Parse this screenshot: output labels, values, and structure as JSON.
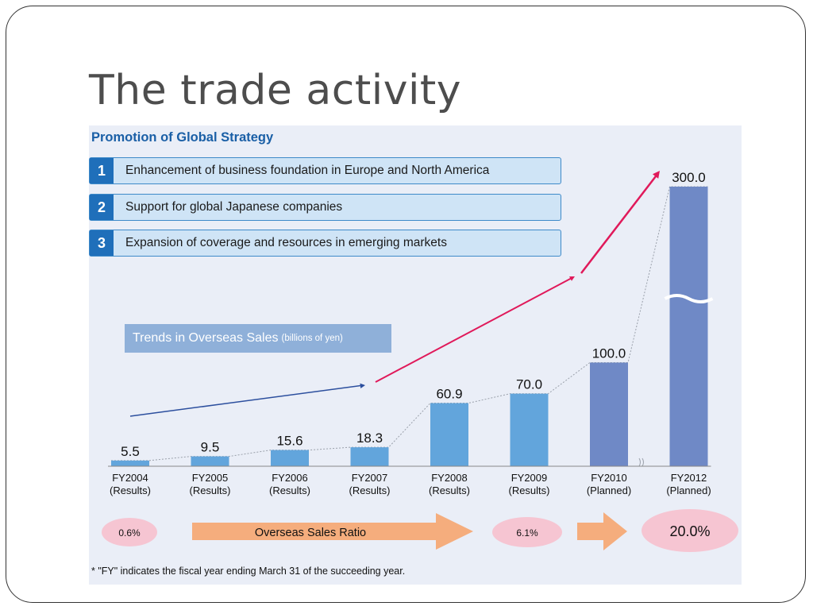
{
  "slide": {
    "title": "The trade activity"
  },
  "figure": {
    "section_title": "Promotion of Global Strategy",
    "strategies": [
      {
        "number": "1",
        "text": "Enhancement of business foundation in Europe and North America"
      },
      {
        "number": "2",
        "text": "Support for global Japanese companies"
      },
      {
        "number": "3",
        "text": "Expansion of coverage and resources in emerging markets"
      }
    ],
    "trends_label": "Trends in Overseas Sales",
    "trends_unit": "(billions of yen)",
    "footnote": "* \"FY\" indicates the fiscal year ending March 31 of the succeeding year."
  },
  "chart_data": {
    "type": "bar",
    "title": "Trends in Overseas Sales",
    "ylabel": "(billions of yen)",
    "axis_break_between": [
      "FY2010",
      "FY2012"
    ],
    "categories": [
      "FY2004 (Results)",
      "FY2005 (Results)",
      "FY2006 (Results)",
      "FY2007 (Results)",
      "FY2008 (Results)",
      "FY2009 (Results)",
      "FY2010 (Planned)",
      "FY2012 (Planned)"
    ],
    "category_lines": [
      [
        "FY2004",
        "(Results)"
      ],
      [
        "FY2005",
        "(Results)"
      ],
      [
        "FY2006",
        "(Results)"
      ],
      [
        "FY2007",
        "(Results)"
      ],
      [
        "FY2008",
        "(Results)"
      ],
      [
        "FY2009",
        "(Results)"
      ],
      [
        "FY2010",
        "(Planned)"
      ],
      [
        "FY2012",
        "(Planned)"
      ]
    ],
    "values": [
      5.5,
      9.5,
      15.6,
      18.3,
      60.9,
      70.0,
      100.0,
      300.0
    ],
    "value_labels": [
      "5.5",
      "9.5",
      "15.6",
      "18.3",
      "60.9",
      "70.0",
      "100.0",
      "300.0"
    ],
    "status": [
      "Results",
      "Results",
      "Results",
      "Results",
      "Results",
      "Results",
      "Planned",
      "Planned"
    ],
    "overseas_sales_ratio": {
      "label": "Overseas Sales Ratio",
      "points": [
        {
          "label": "0.6%"
        },
        {
          "label": "6.1%"
        },
        {
          "label": "20.0%"
        }
      ]
    },
    "colors": {
      "results_bar": "#62a5dc",
      "planned_bar": "#6f89c6",
      "trend_arrow_early": "#2c4f9e",
      "trend_arrow_late": "#e0195a",
      "ratio_oval": "#f6c5d2",
      "ratio_arrow": "#f5ad7d"
    }
  }
}
